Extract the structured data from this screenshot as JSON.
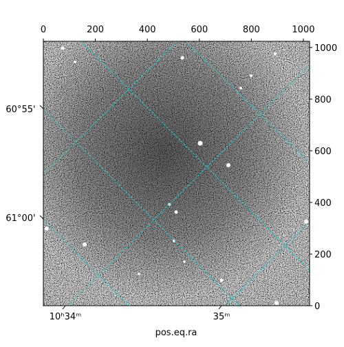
{
  "chart_data": {
    "type": "image",
    "xlim": [
      0,
      1024
    ],
    "ylim": [
      0,
      1024
    ],
    "xticks": [
      0,
      200,
      400,
      600,
      800,
      1000
    ],
    "yticks": [
      0,
      200,
      400,
      600,
      800,
      1000
    ],
    "ra_tick_labels": [
      "10ʰ34ᵐ",
      "35ᵐ"
    ],
    "dec_tick_labels": [
      "60°55'",
      "61°00'"
    ],
    "xlabel": "pos.eq.ra",
    "grid_color": "#2ec4c4"
  }
}
